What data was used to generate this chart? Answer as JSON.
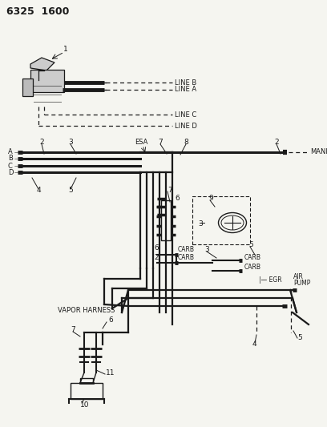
{
  "title": "6325  1600",
  "bg_color": "#f5f5f0",
  "line_color": "#1a1a1a",
  "fig_width": 4.08,
  "fig_height": 5.33,
  "dpi": 100,
  "line_b_label": "LINE B",
  "line_a_label": "LINE A",
  "line_c_label": "LINE C",
  "line_d_label": "LINE D",
  "manifold_label": "MANIFOLD",
  "esa_label": "ESA",
  "carb_labels": [
    "CARB",
    "CARB",
    "CARB"
  ],
  "egr_label": "EGR",
  "air_pump_label": "AIR\nPUMP",
  "vapor_harness_label": "VAPOR HARNESS"
}
